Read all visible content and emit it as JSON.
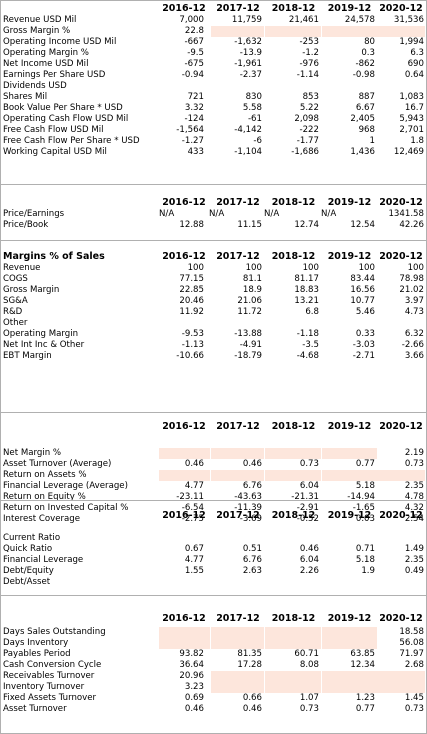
{
  "years": [
    "2016-12",
    "2017-12",
    "2018-12",
    "2019-12",
    "2020-12"
  ],
  "table1": {
    "rows": [
      {
        "label": "Revenue USD Mil",
        "v": [
          "7,000",
          "11,759",
          "21,461",
          "24,578",
          "31,536"
        ]
      },
      {
        "label": "Gross Margin %",
        "v": [
          "22.8",
          "",
          "",
          "",
          ""
        ],
        "shade": [
          1,
          2,
          3,
          4
        ]
      },
      {
        "label": "Operating Income USD Mil",
        "v": [
          "-667",
          "-1,632",
          "-253",
          "80",
          "1,994"
        ]
      },
      {
        "label": "Operating Margin %",
        "v": [
          "-9.5",
          "-13.9",
          "-1.2",
          "0.3",
          "6.3"
        ]
      },
      {
        "label": "Net Income USD Mil",
        "v": [
          "-675",
          "-1,961",
          "-976",
          "-862",
          "690"
        ]
      },
      {
        "label": "Earnings Per Share USD",
        "v": [
          "-0.94",
          "-2.37",
          "-1.14",
          "-0.98",
          "0.64"
        ]
      },
      {
        "label": "Dividends USD",
        "v": [
          "",
          "",
          "",
          "",
          ""
        ]
      },
      {
        "label": "Shares Mil",
        "v": [
          "721",
          "830",
          "853",
          "887",
          "1,083"
        ]
      },
      {
        "label": "Book Value Per Share * USD",
        "v": [
          "3.32",
          "5.58",
          "5.22",
          "6.67",
          "16.7"
        ]
      },
      {
        "label": "Operating Cash Flow USD Mil",
        "v": [
          "-124",
          "-61",
          "2,098",
          "2,405",
          "5,943"
        ]
      },
      {
        "label": "Free Cash Flow USD Mil",
        "v": [
          "-1,564",
          "-4,142",
          "-222",
          "968",
          "2,701"
        ]
      },
      {
        "label": "Free Cash Flow Per Share * USD",
        "v": [
          "-1.27",
          "-6",
          "-1.77",
          "1",
          "1.8"
        ]
      },
      {
        "label": "Working Capital USD Mil",
        "v": [
          "433",
          "-1,104",
          "-1,686",
          "1,436",
          "12,469"
        ]
      }
    ]
  },
  "table2": {
    "rows": [
      {
        "label": "Price/Earnings",
        "v": [
          "N/A",
          "N/A",
          "N/A",
          "N/A",
          "1341.58"
        ],
        "left": true
      },
      {
        "label": "Price/Book",
        "v": [
          "12.88",
          "11.15",
          "12.74",
          "12.54",
          "42.26"
        ]
      }
    ]
  },
  "table3": {
    "title": "Margins % of Sales",
    "rows": [
      {
        "label": "Revenue",
        "v": [
          "100",
          "100",
          "100",
          "100",
          "100"
        ]
      },
      {
        "label": "COGS",
        "v": [
          "77.15",
          "81.1",
          "81.17",
          "83.44",
          "78.98"
        ]
      },
      {
        "label": "Gross Margin",
        "v": [
          "22.85",
          "18.9",
          "18.83",
          "16.56",
          "21.02"
        ]
      },
      {
        "label": "SG&A",
        "v": [
          "20.46",
          "21.06",
          "13.21",
          "10.77",
          "3.97"
        ]
      },
      {
        "label": "R&D",
        "v": [
          "11.92",
          "11.72",
          "6.8",
          "5.46",
          "4.73"
        ]
      },
      {
        "label": "Other",
        "v": [
          "",
          "",
          "",
          "",
          ""
        ]
      },
      {
        "label": "Operating Margin",
        "v": [
          "-9.53",
          "-13.88",
          "-1.18",
          "0.33",
          "6.32"
        ]
      },
      {
        "label": "Net Int Inc & Other",
        "v": [
          "-1.13",
          "-4.91",
          "-3.5",
          "-3.03",
          "-2.66"
        ]
      },
      {
        "label": "EBT Margin",
        "v": [
          "-10.66",
          "-18.79",
          "-4.68",
          "-2.71",
          "3.66"
        ]
      }
    ]
  },
  "table4": {
    "rows": [
      {
        "label": "Net Margin %",
        "v": [
          "",
          "",
          "",
          "",
          "2.19"
        ],
        "shade": [
          0,
          1,
          2,
          3
        ]
      },
      {
        "label": "Asset Turnover (Average)",
        "v": [
          "0.46",
          "0.46",
          "0.73",
          "0.77",
          "0.73"
        ]
      },
      {
        "label": "Return on Assets %",
        "v": [
          "",
          "",
          "",
          "",
          ""
        ],
        "shade": [
          0,
          1,
          2,
          3,
          4
        ]
      },
      {
        "label": "Financial Leverage (Average)",
        "v": [
          "4.77",
          "6.76",
          "6.04",
          "5.18",
          "2.35"
        ]
      },
      {
        "label": "Return on Equity %",
        "v": [
          "-23.11",
          "-43.63",
          "-21.31",
          "-14.94",
          "4.78"
        ]
      },
      {
        "label": "Return on Invested Capital %",
        "v": [
          "-6.54",
          "-11.39",
          "-2.91",
          "-1.65",
          "4.32"
        ]
      },
      {
        "label": "Interest Coverage",
        "v": [
          "-2.75",
          "-3.69",
          "-0.52",
          "0.03",
          "2.54"
        ]
      }
    ]
  },
  "table5": {
    "rows": [
      {
        "label": "Current Ratio",
        "v": [
          "",
          "",
          "",
          "",
          ""
        ]
      },
      {
        "label": "Quick Ratio",
        "v": [
          "0.67",
          "0.51",
          "0.46",
          "0.71",
          "1.49"
        ]
      },
      {
        "label": "Financial Leverage",
        "v": [
          "4.77",
          "6.76",
          "6.04",
          "5.18",
          "2.35"
        ]
      },
      {
        "label": "Debt/Equity",
        "v": [
          "1.55",
          "2.63",
          "2.26",
          "1.9",
          "0.49"
        ]
      },
      {
        "label": "Debt/Asset",
        "v": [
          "",
          "",
          "",
          "",
          ""
        ]
      }
    ]
  },
  "table6": {
    "rows": [
      {
        "label": "Days Sales Outstanding",
        "v": [
          "",
          "",
          "",
          "",
          "18.58"
        ],
        "shade": [
          0,
          1,
          2,
          3
        ]
      },
      {
        "label": "Days Inventory",
        "v": [
          "",
          "",
          "",
          "",
          "56.08"
        ],
        "shade": [
          0,
          1,
          2,
          3
        ]
      },
      {
        "label": "Payables Period",
        "v": [
          "93.82",
          "81.35",
          "60.71",
          "63.85",
          "71.97"
        ]
      },
      {
        "label": "Cash Conversion Cycle",
        "v": [
          "36.64",
          "17.28",
          "8.08",
          "12.34",
          "2.68"
        ]
      },
      {
        "label": "Receivables Turnover",
        "v": [
          "20.96",
          "",
          "",
          "",
          ""
        ],
        "shade": [
          1,
          2,
          3,
          4
        ]
      },
      {
        "label": "Inventory Turnover",
        "v": [
          "3.23",
          "",
          "",
          "",
          ""
        ],
        "shade": [
          1,
          2,
          3,
          4
        ]
      },
      {
        "label": "Fixed Assets Turnover",
        "v": [
          "0.69",
          "0.66",
          "1.07",
          "1.23",
          "1.45"
        ]
      },
      {
        "label": "Asset Turnover",
        "v": [
          "0.46",
          "0.46",
          "0.73",
          "0.77",
          "0.73"
        ]
      }
    ]
  }
}
